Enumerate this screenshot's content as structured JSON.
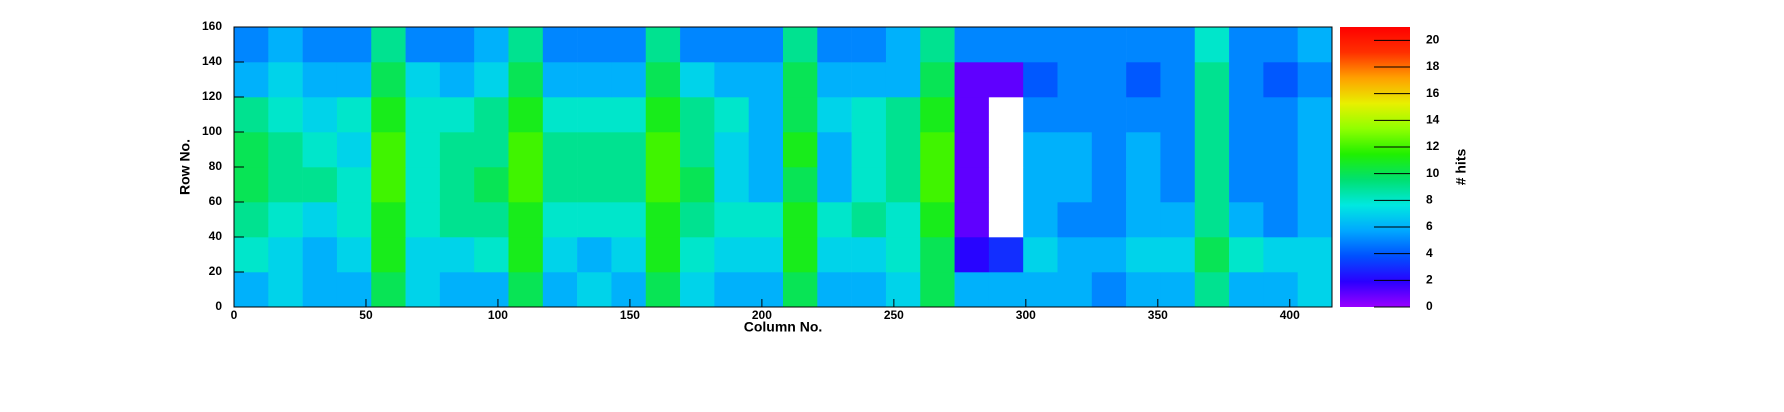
{
  "chart_data": {
    "type": "heatmap",
    "xlabel": "Column No.",
    "ylabel": "Row No.",
    "zlabel": "# hits",
    "xlim": [
      0,
      416
    ],
    "ylim": [
      0,
      160
    ],
    "zlim": [
      0,
      21
    ],
    "xticks": [
      0,
      50,
      100,
      150,
      200,
      250,
      300,
      350,
      400
    ],
    "yticks": [
      0,
      20,
      40,
      60,
      80,
      100,
      120,
      140,
      160
    ],
    "zticks": [
      0,
      2,
      4,
      6,
      8,
      10,
      12,
      14,
      16,
      18,
      20
    ],
    "palette": [
      "#9900ff",
      "#2a00ff",
      "#0050ff",
      "#00a8ff",
      "#00e8e0",
      "#00e070",
      "#20f000",
      "#90ff00",
      "#e8f000",
      "#ffa000",
      "#ff3000",
      "#ff0000"
    ],
    "xbins": [
      0,
      13,
      26,
      39,
      52,
      65,
      78,
      91,
      104,
      117,
      130,
      143,
      156,
      169,
      182,
      195,
      208,
      221,
      234,
      247,
      260,
      273,
      286,
      299,
      312,
      325,
      338,
      351,
      364,
      377,
      390,
      403,
      416
    ],
    "ybins": [
      0,
      20,
      40,
      60,
      80,
      100,
      120,
      140,
      160
    ],
    "z": [
      [
        6,
        7,
        6,
        6,
        10,
        7,
        6,
        6,
        10,
        6,
        7,
        6,
        10,
        7,
        6,
        6,
        10,
        6,
        6,
        7,
        10,
        6,
        6,
        6,
        6,
        5,
        6,
        6,
        9,
        6,
        6,
        7
      ],
      [
        8,
        7,
        6,
        7,
        11,
        7,
        7,
        8,
        11,
        7,
        6,
        7,
        11,
        8,
        7,
        7,
        11,
        7,
        7,
        8,
        10,
        2,
        3,
        7,
        6,
        6,
        7,
        7,
        10,
        8,
        7,
        7
      ],
      [
        9,
        8,
        7,
        8,
        11,
        8,
        9,
        9,
        11,
        8,
        8,
        8,
        11,
        9,
        8,
        8,
        11,
        8,
        9,
        8,
        11,
        1,
        0,
        6,
        5,
        5,
        6,
        6,
        9,
        6,
        5,
        6
      ],
      [
        10,
        9,
        9,
        8,
        12,
        8,
        9,
        10,
        12,
        9,
        9,
        9,
        12,
        10,
        7,
        6,
        10,
        6,
        8,
        9,
        12,
        1,
        0,
        6,
        6,
        5,
        6,
        5,
        9,
        5,
        5,
        6
      ],
      [
        10,
        9,
        8,
        7,
        12,
        8,
        9,
        9,
        12,
        9,
        9,
        9,
        12,
        9,
        7,
        6,
        11,
        6,
        8,
        9,
        12,
        1,
        0,
        6,
        6,
        5,
        6,
        5,
        9,
        5,
        5,
        6
      ],
      [
        9,
        8,
        7,
        8,
        11,
        8,
        8,
        9,
        11,
        8,
        8,
        8,
        11,
        9,
        8,
        6,
        10,
        7,
        8,
        9,
        11,
        1,
        0,
        5,
        5,
        5,
        5,
        5,
        9,
        5,
        5,
        6
      ],
      [
        6,
        7,
        6,
        6,
        10,
        7,
        6,
        7,
        10,
        6,
        6,
        6,
        10,
        7,
        6,
        6,
        10,
        6,
        6,
        6,
        10,
        1,
        1,
        4,
        5,
        5,
        4,
        5,
        9,
        5,
        4,
        5
      ],
      [
        5,
        6,
        5,
        5,
        9,
        5,
        5,
        6,
        9,
        5,
        5,
        5,
        9,
        5,
        5,
        5,
        9,
        5,
        5,
        6,
        9,
        5,
        5,
        5,
        5,
        5,
        5,
        5,
        8,
        5,
        5,
        6
      ]
    ]
  }
}
